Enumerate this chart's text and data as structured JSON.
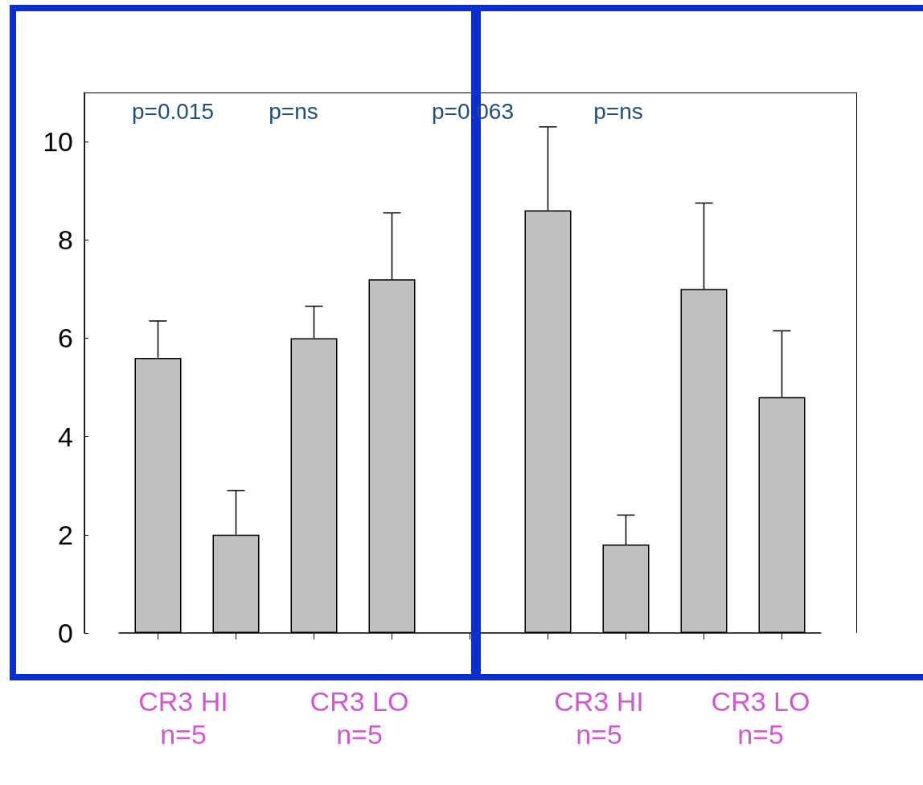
{
  "chart_data": {
    "type": "bar",
    "categories": [
      null,
      null,
      null,
      null,
      null,
      null,
      null,
      null,
      null
    ],
    "values": [
      5.6,
      2.0,
      6.0,
      7.2,
      null,
      8.6,
      1.8,
      7.0,
      4.8
    ],
    "errors": [
      [
        5.6,
        6.35
      ],
      [
        2.0,
        2.9
      ],
      [
        6.0,
        6.65
      ],
      [
        7.2,
        8.55
      ],
      null,
      [
        8.6,
        10.3
      ],
      [
        1.8,
        2.4
      ],
      [
        7.0,
        8.75
      ],
      [
        4.8,
        6.15
      ]
    ],
    "color": "#c0c0c0",
    "ylim": [
      0,
      11
    ],
    "yticks": [
      0,
      2,
      4,
      6,
      8,
      10
    ],
    "grid": false,
    "annotations": [
      "p=0.015",
      "p=ns",
      "p=0.063",
      "p=ns",
      "CR3 HI\nn=5",
      "CR3 LO\nn=5",
      "CR3 HI\nn=5",
      "CR3 LO\nn=5"
    ]
  }
}
